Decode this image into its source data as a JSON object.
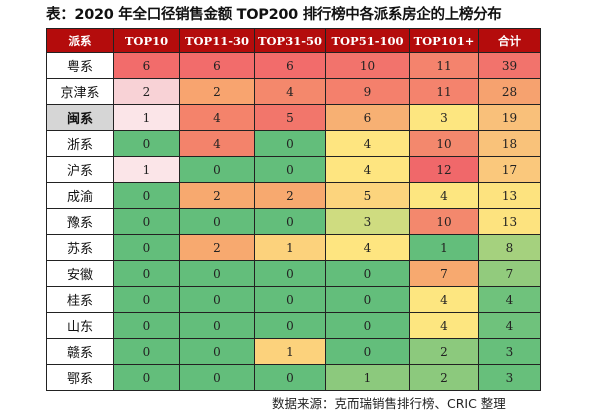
{
  "title": "表：2020 年全口径销售金额 TOP200 排行榜中各派系房企的上榜分布",
  "source": "数据来源：克而瑞销售排行榜、CRIC 整理",
  "chart_data": {
    "type": "heatmap",
    "title": "表：2020 年全口径销售金额 TOP200 排行榜中各派系房企的上榜分布",
    "columns": [
      "派系",
      "TOP10",
      "TOP11-30",
      "TOP31-50",
      "TOP51-100",
      "TOP101+",
      "合计"
    ],
    "header_color": "#b40c0c",
    "highlight_row": "闽系",
    "rows": [
      {
        "name": "粤系",
        "values": [
          6,
          6,
          6,
          10,
          11,
          39
        ],
        "colors": [
          "#f26c6b",
          "#f26c6b",
          "#f26c6b",
          "#f2736c",
          "#f4836d",
          "#f2736c"
        ]
      },
      {
        "name": "京津系",
        "values": [
          2,
          2,
          4,
          9,
          11,
          28
        ],
        "colors": [
          "#f8d2d6",
          "#f8a46f",
          "#f4886c",
          "#f4806c",
          "#f4836d",
          "#f6a26f"
        ]
      },
      {
        "name": "闽系",
        "values": [
          1,
          4,
          5,
          6,
          3,
          19
        ],
        "colors": [
          "#fbe5e8",
          "#f4836b",
          "#f2766b",
          "#f7b073",
          "#fde680",
          "#f9c07a"
        ]
      },
      {
        "name": "浙系",
        "values": [
          0,
          4,
          0,
          4,
          10,
          18
        ],
        "colors": [
          "#63be7b",
          "#f3836b",
          "#63be7b",
          "#fee580",
          "#f3886d",
          "#f9c27a"
        ]
      },
      {
        "name": "沪系",
        "values": [
          1,
          0,
          0,
          4,
          12,
          17
        ],
        "colors": [
          "#fbe5e8",
          "#63be7b",
          "#63be7b",
          "#fee580",
          "#f0686a",
          "#fac87c"
        ]
      },
      {
        "name": "成渝",
        "values": [
          0,
          2,
          2,
          5,
          4,
          13
        ],
        "colors": [
          "#63be7b",
          "#f7a96f",
          "#f7a96f",
          "#fcd47d",
          "#fde680",
          "#fde37f"
        ]
      },
      {
        "name": "豫系",
        "values": [
          0,
          0,
          0,
          3,
          10,
          13
        ],
        "colors": [
          "#63be7b",
          "#63be7b",
          "#63be7b",
          "#cfdc80",
          "#f3886d",
          "#fde37f"
        ]
      },
      {
        "name": "苏系",
        "values": [
          0,
          2,
          1,
          4,
          1,
          8
        ],
        "colors": [
          "#63be7b",
          "#f7a96f",
          "#fcd27c",
          "#fee580",
          "#63be7b",
          "#a5d17e"
        ]
      },
      {
        "name": "安徽",
        "values": [
          0,
          0,
          0,
          0,
          7,
          7
        ],
        "colors": [
          "#63be7b",
          "#63be7b",
          "#63be7b",
          "#63be7b",
          "#f7a96f",
          "#92cb7d"
        ]
      },
      {
        "name": "桂系",
        "values": [
          0,
          0,
          0,
          0,
          4,
          4
        ],
        "colors": [
          "#63be7b",
          "#63be7b",
          "#63be7b",
          "#63be7b",
          "#fde680",
          "#6fc27c"
        ]
      },
      {
        "name": "山东",
        "values": [
          0,
          0,
          0,
          0,
          4,
          4
        ],
        "colors": [
          "#63be7b",
          "#63be7b",
          "#63be7b",
          "#63be7b",
          "#fde680",
          "#6fc27c"
        ]
      },
      {
        "name": "赣系",
        "values": [
          0,
          0,
          1,
          0,
          2,
          3
        ],
        "colors": [
          "#63be7b",
          "#63be7b",
          "#fcd27c",
          "#63be7b",
          "#8cc97d",
          "#67bf7b"
        ]
      },
      {
        "name": "鄂系",
        "values": [
          0,
          0,
          0,
          1,
          2,
          3
        ],
        "colors": [
          "#63be7b",
          "#63be7b",
          "#63be7b",
          "#8cc97d",
          "#8cc97d",
          "#67bf7b"
        ]
      }
    ]
  }
}
